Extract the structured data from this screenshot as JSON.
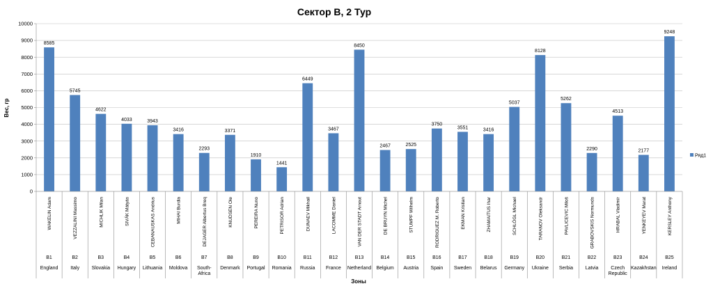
{
  "chart_data": {
    "type": "bar",
    "title": "Сектор B, 2 Тур",
    "ylabel": "Вес, гр",
    "xlabel": "Зоны",
    "ylim": [
      0,
      10000
    ],
    "yticks": [
      0,
      1000,
      2000,
      3000,
      4000,
      5000,
      6000,
      7000,
      8000,
      9000,
      10000
    ],
    "grid": true,
    "legend_position": "right",
    "categories": [
      {
        "name": "WAKELIN Adam",
        "zone": "B1",
        "country": "England"
      },
      {
        "name": "VEZZALINI Massimo",
        "zone": "B2",
        "country": "Italy"
      },
      {
        "name": "MICHLIK Milan",
        "zone": "B3",
        "country": "Slovakia"
      },
      {
        "name": "SIVÁK Mátyás",
        "zone": "B4",
        "country": "Hungary"
      },
      {
        "name": "CEBANAUSKAS Andrius",
        "zone": "B5",
        "country": "Lithuania"
      },
      {
        "name": "MIHAI Burdia",
        "zone": "B6",
        "country": "Moldova"
      },
      {
        "name": "DEJAGER Albertus Breq",
        "zone": "B7",
        "country": "South-Africa"
      },
      {
        "name": "KNUDSEN Ole",
        "zone": "B8",
        "country": "Denmark"
      },
      {
        "name": "PEREIRA Nuno",
        "zone": "B9",
        "country": "Portugal"
      },
      {
        "name": "PETRISOR Adrian",
        "zone": "B10",
        "country": "Romania"
      },
      {
        "name": "DUNAEV Mikhail",
        "zone": "B11",
        "country": "Russia"
      },
      {
        "name": "LACOMME Daniel",
        "zone": "B12",
        "country": "France"
      },
      {
        "name": "VAN DER STADT Arnout",
        "zone": "B13",
        "country": "Netherland"
      },
      {
        "name": "DE BRUYN Michel",
        "zone": "B14",
        "country": "Belgium"
      },
      {
        "name": "STUMPF Wilhelm",
        "zone": "B15",
        "country": "Austria"
      },
      {
        "name": "RODRIGUEZ M. Roberto",
        "zone": "B16",
        "country": "Spain"
      },
      {
        "name": "EKMAN Kristian",
        "zone": "B17",
        "country": "Sweden"
      },
      {
        "name": "ZHAMAITUS Ihar",
        "zone": "B18",
        "country": "Belarus"
      },
      {
        "name": "SCHLÖGL Michael",
        "zone": "B19",
        "country": "Germany"
      },
      {
        "name": "TARANOV Oleksandr",
        "zone": "B20",
        "country": "Ukraine"
      },
      {
        "name": "PAVLICEVIC Miloš",
        "zone": "B21",
        "country": "Serbia"
      },
      {
        "name": "GRABOVSKIS Normunds",
        "zone": "B22",
        "country": "Latvia"
      },
      {
        "name": "HRABAL Vladimír",
        "zone": "B23",
        "country": "Czech Republic"
      },
      {
        "name": "YENKEYEV Marat",
        "zone": "B24",
        "country": "Kazakhstan"
      },
      {
        "name": "KERSLEY Anthony",
        "zone": "B25",
        "country": "Ireland"
      }
    ],
    "series": [
      {
        "name": "Ряд1",
        "color": "#4f81bd",
        "values": [
          8585,
          5745,
          4622,
          4033,
          3943,
          3416,
          2293,
          3371,
          1910,
          1441,
          6449,
          3467,
          8450,
          2467,
          2525,
          3750,
          3551,
          3416,
          5037,
          8128,
          5262,
          2290,
          4513,
          2177,
          9248
        ]
      }
    ]
  }
}
